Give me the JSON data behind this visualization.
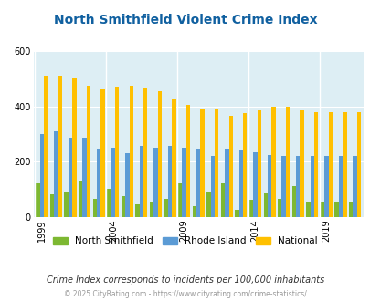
{
  "title": "North Smithfield Violent Crime Index",
  "title_color": "#1060a0",
  "years": [
    1999,
    2000,
    2001,
    2002,
    2003,
    2004,
    2005,
    2006,
    2007,
    2008,
    2009,
    2010,
    2011,
    2012,
    2013,
    2014,
    2015,
    2016,
    2017,
    2018,
    2019,
    2020,
    2021
  ],
  "north_smithfield": [
    120,
    80,
    90,
    130,
    65,
    100,
    75,
    45,
    50,
    65,
    120,
    40,
    90,
    120,
    25,
    60,
    85,
    65,
    110,
    55,
    55,
    55,
    55
  ],
  "rhode_island": [
    300,
    310,
    285,
    285,
    245,
    250,
    230,
    255,
    250,
    255,
    250,
    245,
    220,
    245,
    240,
    235,
    225,
    220,
    220,
    220,
    220,
    220,
    220
  ],
  "national": [
    510,
    510,
    500,
    475,
    460,
    470,
    475,
    465,
    455,
    430,
    405,
    390,
    390,
    365,
    375,
    385,
    400,
    400,
    385,
    380,
    380,
    380,
    380
  ],
  "ns_color": "#7db832",
  "ri_color": "#5b9bd5",
  "nat_color": "#ffc000",
  "ylim": [
    0,
    600
  ],
  "yticks": [
    0,
    200,
    400,
    600
  ],
  "bg_color": "#ddeef4",
  "tick_label_years": [
    1999,
    2004,
    2009,
    2014,
    2019
  ],
  "subtitle": "Crime Index corresponds to incidents per 100,000 inhabitants",
  "footer": "© 2025 CityRating.com - https://www.cityrating.com/crime-statistics/",
  "legend_labels": [
    "North Smithfield",
    "Rhode Island",
    "National"
  ]
}
